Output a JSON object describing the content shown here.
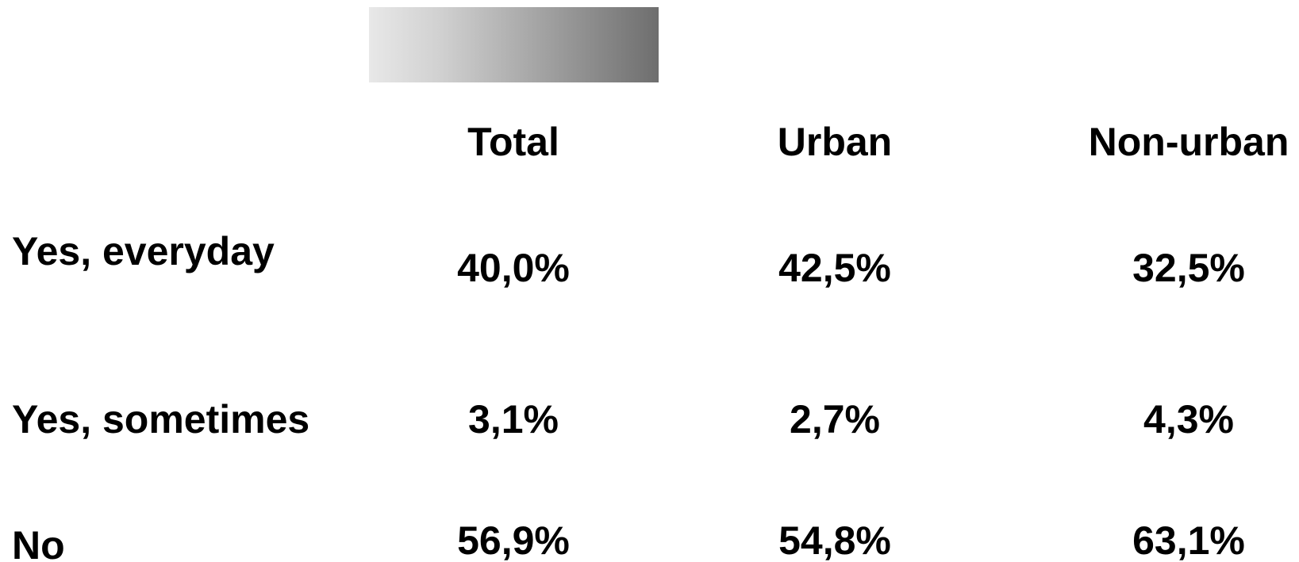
{
  "table": {
    "columns": [
      "Total",
      "Urban",
      "Non-urban"
    ],
    "rows": [
      {
        "label": "Yes, everyday",
        "cells": [
          "40,0%",
          "42,5%",
          "32,5%"
        ]
      },
      {
        "label": "Yes, sometimes",
        "cells": [
          "3,1%",
          "2,7%",
          "4,3%"
        ]
      },
      {
        "label": "No",
        "cells": [
          "56,9%",
          "54,8%",
          "63,1%"
        ]
      }
    ]
  }
}
